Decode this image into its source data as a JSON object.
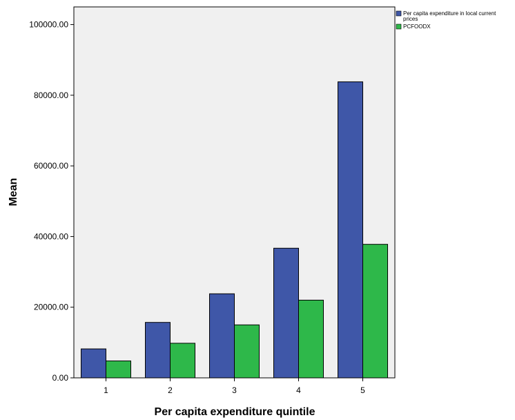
{
  "chart_data": {
    "type": "bar",
    "categories": [
      "1",
      "2",
      "3",
      "4",
      "5"
    ],
    "series": [
      {
        "name": "Per capita expenditure in local current prices",
        "values": [
          8200,
          15700,
          23800,
          36700,
          83800
        ],
        "color": "#3f57a8"
      },
      {
        "name": "PCFOODX",
        "values": [
          4800,
          9800,
          15000,
          22000,
          37800
        ],
        "color": "#2eb84a"
      }
    ],
    "title": "",
    "xlabel": "Per capita expenditure quintile",
    "ylabel": "Mean",
    "ylim": [
      0,
      105000
    ],
    "yticks": [
      0,
      20000,
      40000,
      60000,
      80000,
      100000
    ],
    "ytick_labels": [
      "0.00",
      "20000.00",
      "40000.00",
      "60000.00",
      "80000.00",
      "100000.00"
    ],
    "legend_position": "top-right outside plot",
    "legend_entries": [
      {
        "line1": "Per capita expenditure in local current",
        "line2": "prices"
      },
      {
        "line1": "PCFOODX",
        "line2": ""
      }
    ],
    "plot_background": "#f0f0f0",
    "grid": false
  }
}
